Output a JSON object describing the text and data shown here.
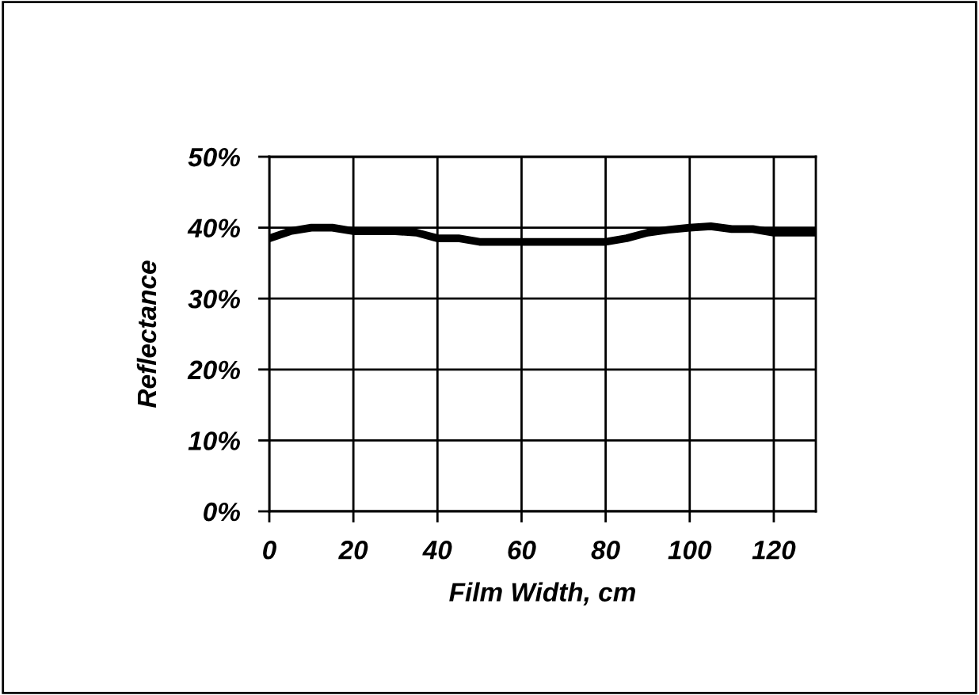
{
  "chart_data": {
    "type": "line",
    "xlabel": "Film Width, cm",
    "ylabel": "Reflectance",
    "series": [
      {
        "color": "#000000",
        "x": [
          0,
          5,
          10,
          15,
          20,
          25,
          30,
          35,
          40,
          45,
          50,
          55,
          60,
          65,
          70,
          75,
          80,
          85,
          90,
          95,
          100,
          105,
          110,
          115,
          120,
          125,
          130
        ],
        "values": [
          38.5,
          39.5,
          40,
          40,
          39.5,
          39.5,
          39.5,
          39.3,
          38.5,
          38.5,
          38,
          38,
          38,
          38,
          38,
          38,
          38,
          38.5,
          39.3,
          39.7,
          40,
          40.2,
          39.8,
          39.8,
          39.3,
          39.3,
          39.3
        ]
      }
    ],
    "xlim": [
      0,
      130
    ],
    "xticks": [
      0,
      20,
      40,
      60,
      80,
      100,
      120
    ],
    "ylim": [
      0,
      50
    ],
    "yticks": [
      {
        "value": 0,
        "label": "0%"
      },
      {
        "value": 10,
        "label": "10%"
      },
      {
        "value": 20,
        "label": "20%"
      },
      {
        "value": 30,
        "label": "30%"
      },
      {
        "value": 40,
        "label": "40%"
      },
      {
        "value": 50,
        "label": "50%"
      }
    ],
    "grid": true,
    "marker": "none",
    "line_style": "solid"
  }
}
